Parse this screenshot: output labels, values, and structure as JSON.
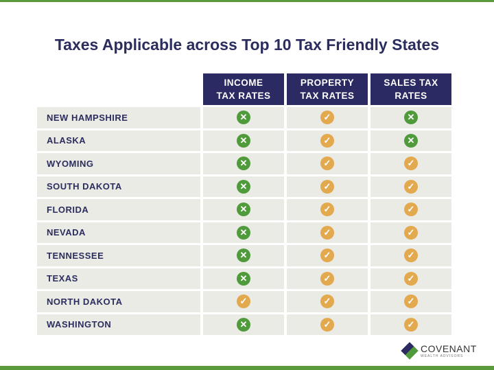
{
  "title": "Taxes Applicable across Top 10 Tax Friendly States",
  "columns": [
    [
      "INCOME",
      "TAX RATES"
    ],
    [
      "PROPERTY",
      "TAX RATES"
    ],
    [
      "SALES TAX",
      "RATES"
    ]
  ],
  "legend": {
    "x": "cross-icon (green) = not applicable",
    "check": "check-icon (orange) = applicable"
  },
  "colors": {
    "header": "#2b2a63",
    "cross": "#4f9a3a",
    "check": "#e3a94e",
    "accent_bar": "#5a9a3a"
  },
  "rows": [
    {
      "state": "NEW HAMPSHIRE",
      "values": [
        "x",
        "check",
        "x"
      ]
    },
    {
      "state": "ALASKA",
      "values": [
        "x",
        "check",
        "x"
      ]
    },
    {
      "state": "WYOMING",
      "values": [
        "x",
        "check",
        "check"
      ]
    },
    {
      "state": "SOUTH DAKOTA",
      "values": [
        "x",
        "check",
        "check"
      ]
    },
    {
      "state": "FLORIDA",
      "values": [
        "x",
        "check",
        "check"
      ]
    },
    {
      "state": "NEVADA",
      "values": [
        "x",
        "check",
        "check"
      ]
    },
    {
      "state": "TENNESSEE",
      "values": [
        "x",
        "check",
        "check"
      ]
    },
    {
      "state": "TEXAS",
      "values": [
        "x",
        "check",
        "check"
      ]
    },
    {
      "state": "NORTH DAKOTA",
      "values": [
        "check",
        "check",
        "check"
      ]
    },
    {
      "state": "WASHINGTON",
      "values": [
        "x",
        "check",
        "check"
      ]
    }
  ],
  "logo": {
    "name": "COVENANT",
    "tagline": "WEALTH ADVISORS"
  }
}
